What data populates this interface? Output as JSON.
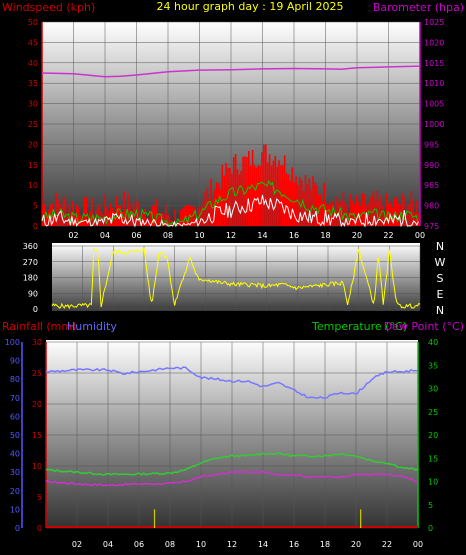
{
  "header": {
    "title": "24 hour graph day : 19 April 2025",
    "left_label": "Windspeed (kph)",
    "right_label": "Barometer (hpa)"
  },
  "bottom_header": {
    "rain_label": "Rainfall (mm)",
    "humidity_label": "Humidity",
    "temp_label": "Temperature (°C)",
    "dew_label": "Dew Point (°C)"
  },
  "direction_labels": [
    "N",
    "W",
    "S",
    "E",
    "N"
  ],
  "colors": {
    "wind": "#ff0000",
    "gust": "#00cc00",
    "avg": "#ffffff",
    "baro": "#cc33cc",
    "winddir": "#ffff00",
    "humidity": "#7777ff",
    "temp": "#33cc33",
    "dew": "#cc33cc",
    "rain": "#cc0000",
    "axis_left": "#cc0000",
    "axis_right": "#cc00cc",
    "axis_green": "#00cc00",
    "axis_blue": "#5555ff"
  },
  "chart_data": [
    {
      "type": "area",
      "id": "wind-baro",
      "hour_ticks": [
        "02",
        "04",
        "06",
        "08",
        "10",
        "12",
        "14",
        "16",
        "18",
        "20",
        "22",
        "00"
      ],
      "left_ticks": [
        0,
        5,
        10,
        15,
        20,
        25,
        30,
        35,
        40,
        45,
        50
      ],
      "right_ticks": [
        975,
        980,
        985,
        990,
        995,
        1000,
        1005,
        1010,
        1015,
        1020,
        1025
      ],
      "series": [
        {
          "key": "wind",
          "hours": [
            0,
            1,
            2,
            3,
            4,
            5,
            6,
            7,
            8,
            9,
            10,
            11,
            12,
            13,
            14,
            15,
            16,
            17,
            18,
            19,
            20,
            21,
            22,
            23,
            24
          ],
          "values": [
            5,
            6,
            5,
            4,
            5,
            6,
            5,
            4,
            3,
            2,
            6,
            10,
            15,
            16,
            18,
            17,
            13,
            10,
            8,
            6,
            5,
            6,
            5,
            6,
            5
          ]
        },
        {
          "key": "gust",
          "hours": [
            0,
            1,
            2,
            3,
            4,
            5,
            6,
            7,
            8,
            9,
            10,
            11,
            12,
            13,
            14,
            15,
            16,
            17,
            18,
            19,
            20,
            21,
            22,
            23,
            24
          ],
          "values": [
            2,
            3,
            2,
            2,
            2,
            3,
            3,
            2,
            1,
            1,
            3,
            6,
            8,
            9,
            10,
            9,
            7,
            5,
            4,
            3,
            2,
            3,
            2,
            3,
            2
          ]
        },
        {
          "key": "avg",
          "hours": [
            0,
            1,
            2,
            3,
            4,
            5,
            6,
            7,
            8,
            9,
            10,
            11,
            12,
            13,
            14,
            15,
            16,
            17,
            18,
            19,
            20,
            21,
            22,
            23,
            24
          ],
          "values": [
            1,
            2,
            1,
            1,
            1,
            2,
            1,
            1,
            0,
            0,
            1,
            3,
            4,
            5,
            6,
            5,
            3,
            2,
            2,
            1,
            1,
            2,
            1,
            2,
            1
          ]
        },
        {
          "key": "baro",
          "hours": [
            0,
            2,
            4,
            5,
            6,
            8,
            10,
            12,
            14,
            16,
            18,
            19,
            20,
            22,
            24
          ],
          "values": [
            1012.5,
            1012.3,
            1011.6,
            1011.7,
            1012.0,
            1012.8,
            1013.2,
            1013.3,
            1013.5,
            1013.6,
            1013.5,
            1013.4,
            1013.8,
            1014.0,
            1014.2
          ]
        }
      ]
    },
    {
      "type": "line",
      "id": "wind-direction",
      "left_ticks": [
        0,
        90,
        180,
        270,
        360
      ],
      "series": [
        {
          "key": "winddir",
          "hours": [
            0,
            1,
            2,
            2.6,
            2.7,
            3,
            3.2,
            4,
            5,
            6,
            6.5,
            7,
            7.5,
            8,
            8.3,
            8.6,
            9,
            9.3,
            9.6,
            10,
            11,
            12,
            13,
            14,
            15,
            16,
            17,
            18,
            19,
            19.3,
            20,
            21,
            21.3,
            21.6,
            22,
            22.5,
            23,
            24
          ],
          "values": [
            20,
            15,
            20,
            20,
            340,
            320,
            20,
            330,
            320,
            340,
            20,
            330,
            300,
            20,
            120,
            180,
            300,
            220,
            160,
            170,
            150,
            140,
            140,
            130,
            140,
            120,
            130,
            140,
            150,
            20,
            340,
            20,
            320,
            20,
            330,
            20,
            15,
            20
          ]
        }
      ]
    },
    {
      "type": "line",
      "id": "temp-hum-rain",
      "hum_ticks": [
        0,
        10,
        20,
        30,
        40,
        50,
        60,
        70,
        80,
        90,
        100
      ],
      "rain_ticks": [
        0,
        5,
        10,
        15,
        20,
        25,
        30
      ],
      "temp_ticks": [
        0,
        5,
        10,
        15,
        20,
        25,
        30,
        35,
        40
      ],
      "series": [
        {
          "key": "humidity",
          "hours": [
            0,
            2,
            4,
            5,
            6,
            7,
            8,
            9,
            10,
            11,
            12,
            13,
            14,
            15,
            16,
            17,
            18,
            19,
            20,
            21,
            22,
            23,
            24
          ],
          "values": [
            84,
            85,
            85,
            83,
            84,
            85,
            86,
            86,
            81,
            80,
            79,
            79,
            76,
            78,
            74,
            70,
            70,
            73,
            72,
            80,
            84,
            84,
            85
          ]
        },
        {
          "key": "temp",
          "hours": [
            0,
            2,
            4,
            6,
            8,
            9,
            10,
            11,
            12,
            13,
            14,
            15,
            16,
            17,
            18,
            19,
            20,
            21,
            22,
            23,
            24
          ],
          "values": [
            12.5,
            12,
            11.5,
            11.6,
            11.8,
            12.5,
            14,
            15,
            15.5,
            15.5,
            16,
            16,
            15.5,
            15.5,
            15.5,
            16,
            15.5,
            14.5,
            14,
            13,
            12.5
          ]
        },
        {
          "key": "dew",
          "hours": [
            0,
            2,
            4,
            6,
            8,
            9,
            10,
            11,
            12,
            13,
            14,
            15,
            16,
            17,
            18,
            19,
            20,
            21,
            22,
            23,
            24
          ],
          "values": [
            10,
            9.5,
            9.2,
            9.5,
            9.5,
            10,
            11,
            11.5,
            12,
            12,
            12,
            11.5,
            11.5,
            11,
            11,
            11,
            11.5,
            11.5,
            11.5,
            11,
            10
          ]
        },
        {
          "key": "rain_events",
          "hours": [
            7,
            20.3
          ],
          "values": [
            3,
            3
          ]
        }
      ]
    }
  ]
}
